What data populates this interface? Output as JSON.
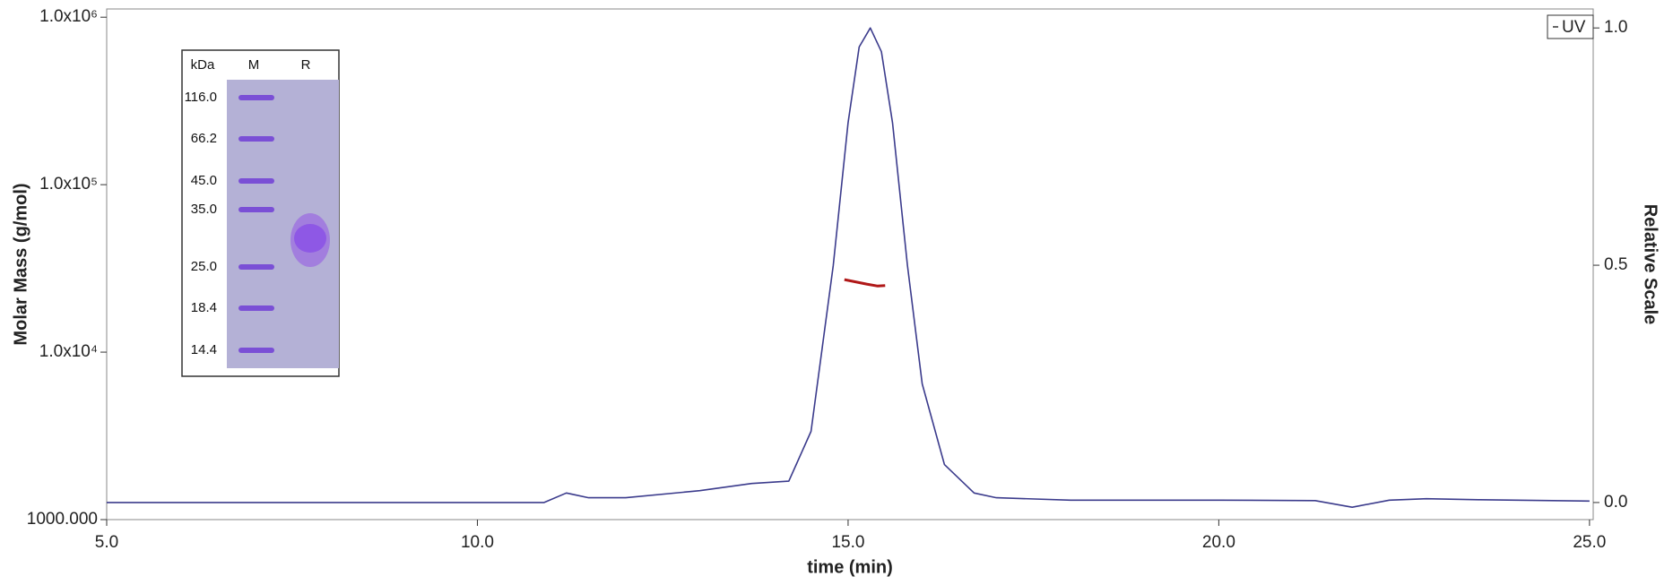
{
  "chart_data": {
    "type": "line",
    "x_label": "time (min)",
    "y_label": "Molar Mass (g/mol)",
    "y2_label": "Relative Scale",
    "xlim": [
      5.0,
      25.05
    ],
    "xticks": [
      {
        "value": 5,
        "label": "5.0"
      },
      {
        "value": 10,
        "label": "10.0"
      },
      {
        "value": 15,
        "label": "15.0"
      },
      {
        "value": 20,
        "label": "20.0"
      },
      {
        "value": 25,
        "label": "25.0"
      }
    ],
    "ylim": [
      1000,
      1120000
    ],
    "y_log": true,
    "yticks": [
      {
        "value": 1000,
        "label": "1000.000"
      },
      {
        "value": 10000,
        "label": "1.0x10⁴"
      },
      {
        "value": 100000,
        "label": "1.0x10⁵"
      },
      {
        "value": 1000000,
        "label": "1.0x10⁶"
      }
    ],
    "y2lim": [
      -0.036,
      1.04
    ],
    "y2ticks": [
      {
        "value": 0,
        "label": "0.0"
      },
      {
        "value": 0.5,
        "label": "0.5"
      },
      {
        "value": 1,
        "label": "1.0"
      }
    ],
    "legend": "top-right",
    "series": [
      {
        "name": "UV",
        "color": "#3b3b8c",
        "axis": "y2",
        "x": [
          5.0,
          10.9,
          11.2,
          11.5,
          12.0,
          13.0,
          13.7,
          14.2,
          14.5,
          14.8,
          15.0,
          15.15,
          15.3,
          15.45,
          15.6,
          15.8,
          16.0,
          16.3,
          16.7,
          17.0,
          18.0,
          20.0,
          21.3,
          21.8,
          22.3,
          22.8,
          23.5,
          25.0
        ],
        "values": [
          0,
          0,
          0.02,
          0.01,
          0.01,
          0.025,
          0.04,
          0.045,
          0.15,
          0.5,
          0.8,
          0.96,
          1.0,
          0.95,
          0.8,
          0.5,
          0.25,
          0.08,
          0.02,
          0.01,
          0.005,
          0.005,
          0.004,
          -0.01,
          0.005,
          0.008,
          0.006,
          0.003
        ]
      },
      {
        "color": "#b01818",
        "axis": "y",
        "x": [
          14.95,
          15.1,
          15.25,
          15.4,
          15.5
        ],
        "values": [
          27100,
          26300,
          25500,
          24800,
          25000
        ]
      }
    ]
  },
  "gel": {
    "headers": [
      "kDa",
      "M",
      "R"
    ],
    "markers": [
      "116.0",
      "66.2",
      "45.0",
      "35.0",
      "25.0",
      "18.4",
      "14.4"
    ]
  }
}
